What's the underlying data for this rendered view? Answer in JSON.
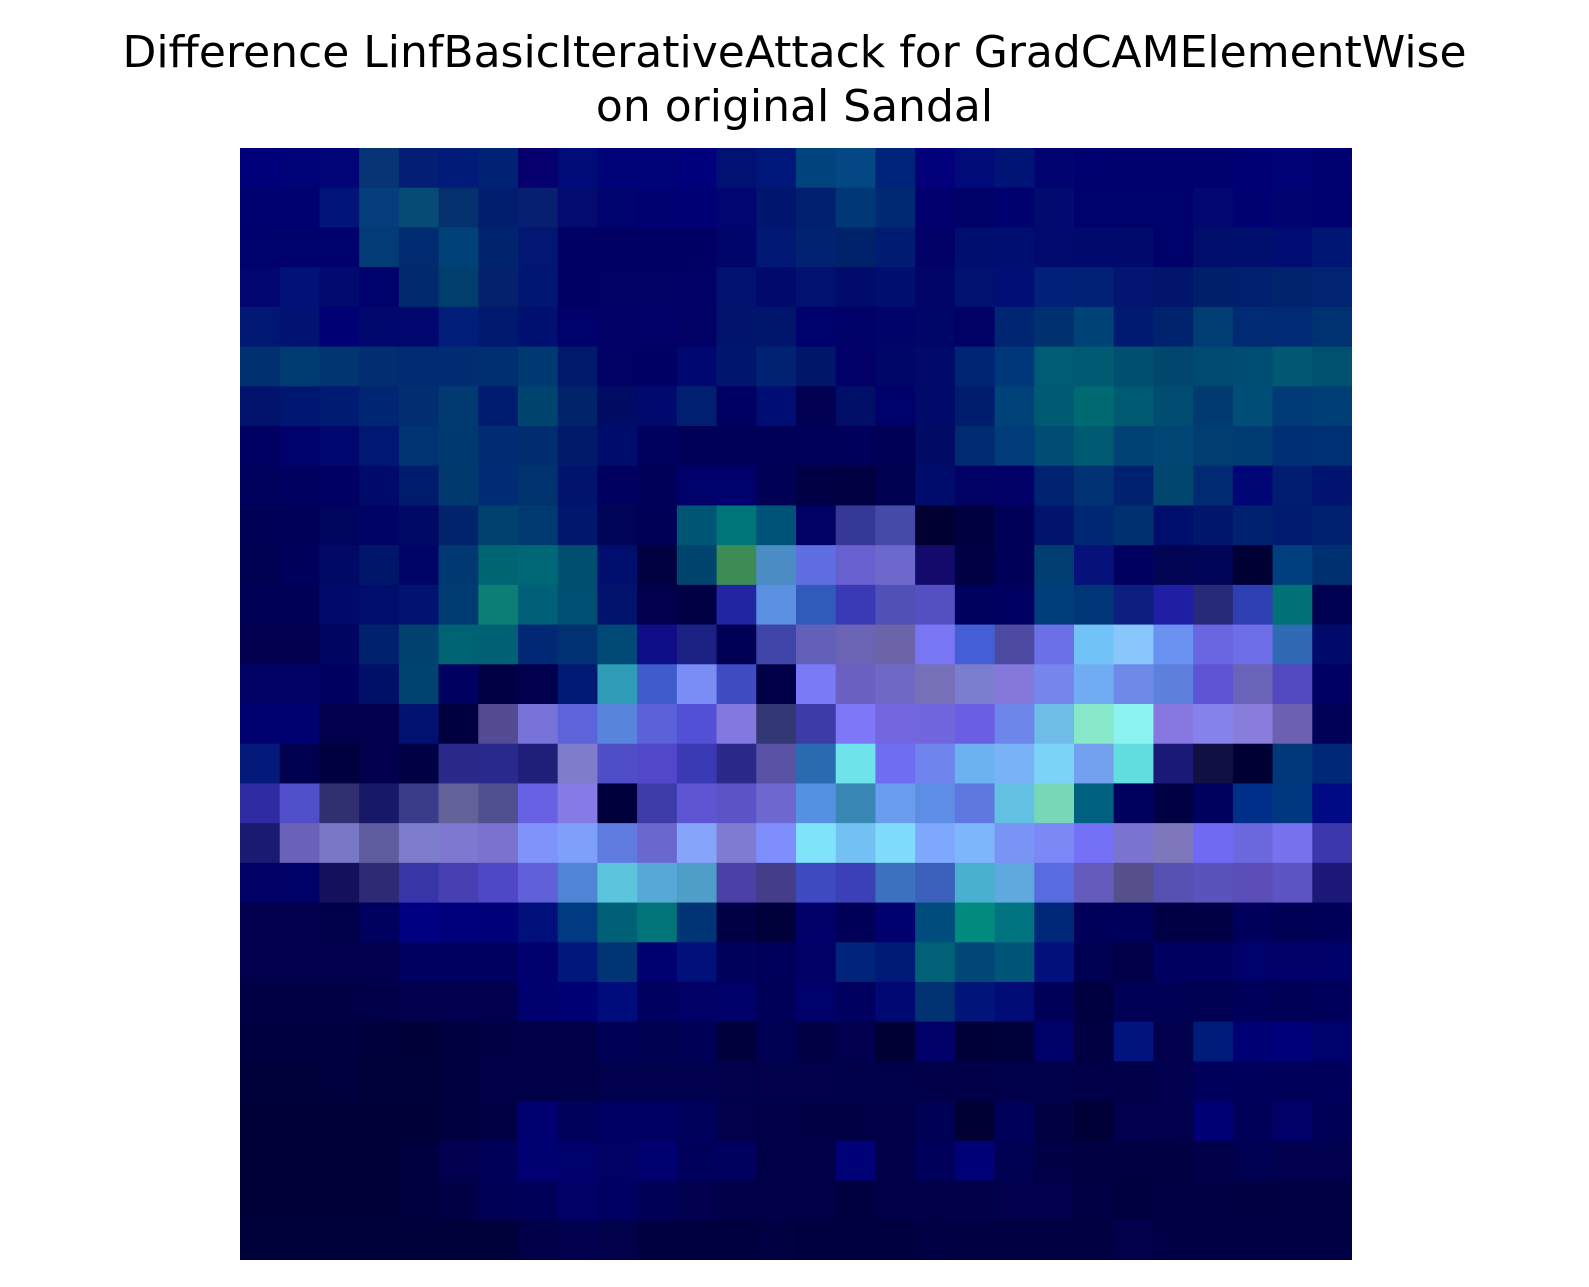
{
  "chart_data": {
    "type": "heatmap",
    "title_line1": "Difference LinfBasicIterativeAttack for GradCAMElementWise",
    "title_line2": "on original Sandal",
    "xlabel": "",
    "ylabel": "",
    "axes_visible": false,
    "grid": false,
    "rows": 28,
    "cols": 28,
    "cells": [
      [
        "#00007a",
        "#000278",
        "#000476",
        "#063474",
        "#041e76",
        "#001b78",
        "#002274",
        "#06006f",
        "#010a79",
        "#000277",
        "#000378",
        "#00007c",
        "#001174",
        "#00177a",
        "#00447d",
        "#034885",
        "#00237a",
        "#03007c",
        "#000a78",
        "#001475",
        "#000370",
        "#000071",
        "#00006e",
        "#00006f",
        "#00006f",
        "#000074",
        "#020276",
        "#000072"
      ],
      [
        "#000070",
        "#000070",
        "#001577",
        "#063e7d",
        "#064a76",
        "#04316d",
        "#031d6e",
        "#061f70",
        "#030a70",
        "#00046e",
        "#000072",
        "#000074",
        "#000571",
        "#00166e",
        "#001f6f",
        "#003777",
        "#002973",
        "#02006f",
        "#000069",
        "#00006e",
        "#000a6f",
        "#00006d",
        "#00006b",
        "#00006d",
        "#020870",
        "#010072",
        "#010371",
        "#000071"
      ],
      [
        "#00006d",
        "#00006b",
        "#00016d",
        "#033b77",
        "#002b71",
        "#004177",
        "#00236e",
        "#011772",
        "#000064",
        "#000064",
        "#000064",
        "#000064",
        "#00056b",
        "#001874",
        "#002271",
        "#00226b",
        "#001c72",
        "#000066",
        "#000e70",
        "#000e72",
        "#000a6f",
        "#000a6c",
        "#000a6c",
        "#00006a",
        "#000d6b",
        "#000e6e",
        "#000c71",
        "#001674"
      ],
      [
        "#01066e",
        "#001177",
        "#000a6f",
        "#00006c",
        "#002a6d",
        "#003e6d",
        "#05216c",
        "#001772",
        "#000063",
        "#000065",
        "#000065",
        "#000066",
        "#011370",
        "#000a6d",
        "#001170",
        "#000b6a",
        "#000e6f",
        "#000566",
        "#00126f",
        "#000e75",
        "#00207a",
        "#002176",
        "#021571",
        "#00156b",
        "#001f6a",
        "#00206f",
        "#00236e",
        "#002472"
      ],
      [
        "#011774",
        "#001372",
        "#000074",
        "#00086d",
        "#00066d",
        "#001e79",
        "#00196f",
        "#001070",
        "#00016a",
        "#000067",
        "#000068",
        "#000065",
        "#00136d",
        "#00166d",
        "#00016d",
        "#000069",
        "#00046a",
        "#000568",
        "#000065",
        "#002573",
        "#003070",
        "#004377",
        "#001a71",
        "#00236d",
        "#003d72",
        "#002a74",
        "#002a76",
        "#003271"
      ],
      [
        "#003070",
        "#003c71",
        "#003571",
        "#002e71",
        "#002a71",
        "#002d72",
        "#002f71",
        "#003972",
        "#00196c",
        "#000065",
        "#000064",
        "#000870",
        "#00166e",
        "#002272",
        "#00166b",
        "#000068",
        "#000568",
        "#000a68",
        "#002575",
        "#00367a",
        "#005b74",
        "#005b72",
        "#004e70",
        "#00466d",
        "#004a72",
        "#004d74",
        "#005871",
        "#00506f"
      ],
      [
        "#00126c",
        "#001771",
        "#001c72",
        "#002572",
        "#002e70",
        "#003a71",
        "#001c71",
        "#004570",
        "#00236a",
        "#000b64",
        "#00096e",
        "#001f70",
        "#000063",
        "#000e73",
        "#010052",
        "#000e68",
        "#00006a",
        "#000a69",
        "#001d6d",
        "#00437a",
        "#005a72",
        "#006a73",
        "#005a72",
        "#004d71",
        "#003a70",
        "#004e77",
        "#003b78",
        "#003f75"
      ],
      [
        "#000063",
        "#00016c",
        "#000870",
        "#001872",
        "#003371",
        "#003970",
        "#002c73",
        "#002c70",
        "#001968",
        "#000c6b",
        "#00005f",
        "#000058",
        "#000058",
        "#000058",
        "#00005c",
        "#00005c",
        "#000055",
        "#000b65",
        "#002b71",
        "#003c79",
        "#004c75",
        "#005a72",
        "#004274",
        "#004775",
        "#003e71",
        "#003b71",
        "#002f75",
        "#003074"
      ],
      [
        "#00005d",
        "#000060",
        "#000063",
        "#000a69",
        "#001a6d",
        "#00396e",
        "#002c75",
        "#00336d",
        "#00146e",
        "#000061",
        "#000058",
        "#00006b",
        "#00006c",
        "#000155",
        "#000047",
        "#000043",
        "#000050",
        "#000c6b",
        "#000065",
        "#000066",
        "#002371",
        "#003274",
        "#002070",
        "#00466f",
        "#002a72",
        "#000676",
        "#001d72",
        "#00146f"
      ],
      [
        "#000057",
        "#000059",
        "#00045e",
        "#000364",
        "#000a66",
        "#00236c",
        "#004170",
        "#003a70",
        "#00176d",
        "#000457",
        "#000056",
        "#005575",
        "#007579",
        "#005378",
        "#000065",
        "#353896",
        "#454aa9",
        "#000033",
        "#000041",
        "#000059",
        "#00136d",
        "#002774",
        "#003070",
        "#000e6b",
        "#00166d",
        "#002170",
        "#001a70",
        "#002170"
      ],
      [
        "#000053",
        "#00005c",
        "#000966",
        "#00166a",
        "#000466",
        "#003872",
        "#006473",
        "#006777",
        "#004f70",
        "#000e6d",
        "#000140",
        "#00456e",
        "#3e8c55",
        "#4c8cc5",
        "#5f6fe1",
        "#6860cf",
        "#6d68cc",
        "#130a6c",
        "#000045",
        "#000059",
        "#003e72",
        "#061179",
        "#000060",
        "#000452",
        "#000557",
        "#000035",
        "#003f7e",
        "#00306f"
      ],
      [
        "#000056",
        "#000057",
        "#000a6a",
        "#000d6d",
        "#00136e",
        "#003b72",
        "#0c7e75",
        "#006077",
        "#004e71",
        "#00126b",
        "#00004c",
        "#000045",
        "#2225a2",
        "#5a90df",
        "#305bbb",
        "#3b3ab6",
        "#5050b6",
        "#5450c1",
        "#00005e",
        "#000062",
        "#003d7b",
        "#003578",
        "#0c1f80",
        "#201fa3",
        "#262a79",
        "#2e3fb2",
        "#007177",
        "#000053"
      ],
      [
        "#00004f",
        "#00004f",
        "#000561",
        "#00226e",
        "#00416f",
        "#006373",
        "#006175",
        "#002874",
        "#003273",
        "#004875",
        "#0e0c87",
        "#1b2083",
        "#000054",
        "#3e44a8",
        "#6260b8",
        "#6b63b4",
        "#6c64a8",
        "#7876f5",
        "#445fd5",
        "#4d4ba1",
        "#6b70e7",
        "#71c3f7",
        "#88c6fb",
        "#6991ef",
        "#6a65e0",
        "#6e6ee9",
        "#306ab5",
        "#000a6b"
      ],
      [
        "#000065",
        "#000065",
        "#000060",
        "#000f68",
        "#004270",
        "#000060",
        "#000045",
        "#00004e",
        "#001a74",
        "#2e9cb6",
        "#3e5ccc",
        "#7a8df6",
        "#3f4cc2",
        "#000048",
        "#7b7af6",
        "#6a60c1",
        "#6f69c5",
        "#7570b8",
        "#7b7ecf",
        "#8479db",
        "#7586ec",
        "#70acf2",
        "#6f89e8",
        "#5e80dd",
        "#5e55d5",
        "#6a64b8",
        "#5248c0",
        "#000063"
      ],
      [
        "#000071",
        "#000072",
        "#00004c",
        "#00004c",
        "#001170",
        "#00003e",
        "#544b95",
        "#7773d9",
        "#5d63d8",
        "#5884db",
        "#5b61d8",
        "#5350d5",
        "#8378df",
        "#333875",
        "#3d3ba6",
        "#7e78f9",
        "#7466de",
        "#7266df",
        "#6a5fe2",
        "#6e85ea",
        "#6fbce8",
        "#87e7c9",
        "#8df3f0",
        "#8777e1",
        "#8582eb",
        "#897ddc",
        "#6c60b3",
        "#010157"
      ],
      [
        "#041a7b",
        "#000050",
        "#00003f",
        "#00004d",
        "#000045",
        "#2b2a8a",
        "#2a2a8c",
        "#1f1f7a",
        "#7e7dcc",
        "#4f4ec6",
        "#5048c9",
        "#3b3ab5",
        "#2b298a",
        "#5a52a5",
        "#2a6ab1",
        "#6ee3ec",
        "#6f6ef3",
        "#6f84ec",
        "#6db2f0",
        "#7ab2f7",
        "#7bd3f8",
        "#74a1ef",
        "#62dde0",
        "#1b1978",
        "#111044",
        "#000035",
        "#003879",
        "#002878"
      ],
      [
        "#2e2ba3",
        "#514ec9",
        "#303070",
        "#181868",
        "#3a3c8a",
        "#626299",
        "#51508f",
        "#6961e4",
        "#867ae6",
        "#00003d",
        "#3e3ca9",
        "#5d55d1",
        "#5a54c8",
        "#6d68cf",
        "#5591e2",
        "#3887b5",
        "#6a9ded",
        "#5d8de4",
        "#6077e2",
        "#63c2e3",
        "#77d8b8",
        "#00607f",
        "#00005e",
        "#000045",
        "#00005f",
        "#002f8a",
        "#003880",
        "#000a84"
      ],
      [
        "#1b1a72",
        "#6a62b8",
        "#7978c6",
        "#5e5b9f",
        "#7d7bcb",
        "#7f78d1",
        "#7b72cf",
        "#7f93fa",
        "#7fa0fa",
        "#5f7be0",
        "#6a68cf",
        "#86a4fa",
        "#7d7cd2",
        "#7e8efc",
        "#7fe3fa",
        "#73c0f3",
        "#7fdcfa",
        "#7ea8fb",
        "#7db6fa",
        "#7a94f6",
        "#7b88f6",
        "#7471f6",
        "#7b73d2",
        "#7e77bc",
        "#7069f4",
        "#6c68de",
        "#7972ee",
        "#3c37ac"
      ],
      [
        "#000066",
        "#000069",
        "#14105c",
        "#2e2a74",
        "#3835a9",
        "#4640b2",
        "#4e47c6",
        "#5f60da",
        "#4f85d4",
        "#5dc4de",
        "#57a8d7",
        "#4e9ec9",
        "#4a40a5",
        "#443d8a",
        "#3d4ac0",
        "#3c40b6",
        "#3b71bf",
        "#3b61bc",
        "#4ab0cf",
        "#60a9df",
        "#586be1",
        "#655bbd",
        "#554f8c",
        "#5652b4",
        "#5a53bb",
        "#5c4eb8",
        "#5d54c3",
        "#1c187a"
      ],
      [
        "#00004d",
        "#00004d",
        "#00004a",
        "#00005e",
        "#000082",
        "#00007d",
        "#000078",
        "#000f79",
        "#003a83",
        "#006075",
        "#007479",
        "#003475",
        "#000046",
        "#00003b",
        "#000068",
        "#000058",
        "#000071",
        "#004c7d",
        "#008b7e",
        "#007581",
        "#002879",
        "#00005b",
        "#00005c",
        "#000045",
        "#000047",
        "#00005c",
        "#000054",
        "#000058"
      ],
      [
        "#00004d",
        "#00004d",
        "#00004d",
        "#00004d",
        "#000061",
        "#000061",
        "#000061",
        "#00006f",
        "#00167b",
        "#003474",
        "#000073",
        "#00117b",
        "#00005d",
        "#00005b",
        "#000066",
        "#002479",
        "#001a75",
        "#006177",
        "#004778",
        "#005679",
        "#00107d",
        "#000053",
        "#000048",
        "#000060",
        "#000060",
        "#00006a",
        "#000068",
        "#000069"
      ],
      [
        "#000046",
        "#000046",
        "#000046",
        "#000049",
        "#00004e",
        "#00004e",
        "#00004e",
        "#00006e",
        "#000075",
        "#000c7c",
        "#000061",
        "#000066",
        "#000069",
        "#000059",
        "#00006b",
        "#000060",
        "#000874",
        "#003170",
        "#00147a",
        "#000b76",
        "#000059",
        "#000041",
        "#000055",
        "#000054",
        "#000052",
        "#00005a",
        "#000056",
        "#00005a"
      ],
      [
        "#00003e",
        "#00003e",
        "#000041",
        "#00003c",
        "#000039",
        "#00003e",
        "#000047",
        "#000049",
        "#000049",
        "#000057",
        "#000051",
        "#000056",
        "#00003c",
        "#000052",
        "#000047",
        "#00004e",
        "#000034",
        "#000068",
        "#000038",
        "#00003b",
        "#000069",
        "#000042",
        "#00137e",
        "#00004c",
        "#001c7b",
        "#000075",
        "#00007b",
        "#00006d"
      ],
      [
        "#00003a",
        "#00003a",
        "#00003e",
        "#00003a",
        "#00003a",
        "#000040",
        "#000048",
        "#000049",
        "#000049",
        "#00004c",
        "#00004c",
        "#00004e",
        "#00004b",
        "#00004b",
        "#00004b",
        "#00004a",
        "#00004a",
        "#000049",
        "#000049",
        "#00004a",
        "#00004a",
        "#000049",
        "#000049",
        "#00004f",
        "#00005c",
        "#00005c",
        "#00005a",
        "#00005a"
      ],
      [
        "#000038",
        "#000038",
        "#000038",
        "#000038",
        "#000038",
        "#000041",
        "#000047",
        "#000072",
        "#00005d",
        "#000062",
        "#000063",
        "#00005d",
        "#00004b",
        "#000049",
        "#000046",
        "#000046",
        "#000048",
        "#000054",
        "#000034",
        "#00005b",
        "#000043",
        "#000036",
        "#00004e",
        "#00004d",
        "#000074",
        "#000058",
        "#000068",
        "#000057"
      ],
      [
        "#000038",
        "#000038",
        "#000038",
        "#000038",
        "#000041",
        "#00004e",
        "#000058",
        "#000072",
        "#00006c",
        "#000065",
        "#000070",
        "#00005c",
        "#00005e",
        "#000048",
        "#000048",
        "#000077",
        "#000048",
        "#00005c",
        "#000077",
        "#000052",
        "#000047",
        "#000043",
        "#000043",
        "#000043",
        "#000049",
        "#000052",
        "#00004e",
        "#00004e"
      ],
      [
        "#000038",
        "#000038",
        "#000038",
        "#000038",
        "#00003e",
        "#000047",
        "#000057",
        "#000059",
        "#000066",
        "#000063",
        "#000056",
        "#00004f",
        "#000049",
        "#000049",
        "#000049",
        "#000041",
        "#000049",
        "#000049",
        "#000049",
        "#00004d",
        "#00004d",
        "#000044",
        "#00003e",
        "#000047",
        "#000046",
        "#000043",
        "#000044",
        "#000044"
      ],
      [
        "#00003b",
        "#00003b",
        "#00003b",
        "#00003b",
        "#00003b",
        "#00003b",
        "#00003b",
        "#000048",
        "#00004f",
        "#00004b",
        "#000041",
        "#000040",
        "#00003e",
        "#000042",
        "#000040",
        "#000041",
        "#00003e",
        "#000045",
        "#000043",
        "#000042",
        "#000042",
        "#000043",
        "#00004b",
        "#000046",
        "#000044",
        "#000044",
        "#000044",
        "#000044"
      ]
    ]
  }
}
